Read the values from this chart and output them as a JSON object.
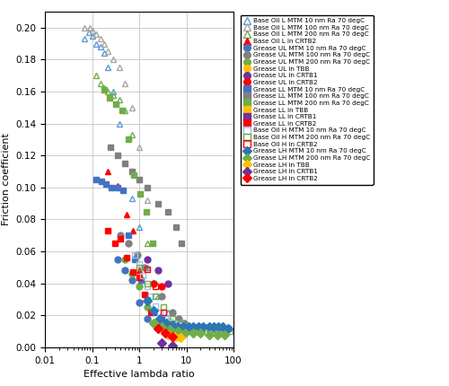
{
  "xlabel": "Effective lambda ratio",
  "ylabel": "Friction coefficient",
  "xlim": [
    0.01,
    100
  ],
  "ylim": [
    0,
    0.21
  ],
  "yticks": [
    0,
    0.02,
    0.04,
    0.06,
    0.08,
    0.1,
    0.12,
    0.14,
    0.16,
    0.18,
    0.2
  ],
  "figsize": [
    5.0,
    4.3
  ],
  "dpi": 100,
  "series": [
    {
      "label": "Base Oil L MTM 10 nm Ra 70 degC",
      "color": "#5B9BD5",
      "marker": "^",
      "filled": false,
      "x": [
        0.07,
        0.085,
        0.1,
        0.12,
        0.15,
        0.18,
        0.22,
        0.28,
        0.38,
        0.5,
        0.7,
        1.0,
        1.5,
        2.5,
        4.0
      ],
      "y": [
        0.193,
        0.197,
        0.195,
        0.19,
        0.188,
        0.184,
        0.175,
        0.16,
        0.14,
        0.115,
        0.093,
        0.075,
        0.05,
        0.032,
        0.022
      ]
    },
    {
      "label": "Base Oil L MTM 100 nm Ra 70 degC",
      "color": "#A6A6A6",
      "marker": "^",
      "filled": false,
      "x": [
        0.07,
        0.09,
        0.1,
        0.12,
        0.15,
        0.18,
        0.22,
        0.28,
        0.38,
        0.5,
        0.7,
        1.0,
        1.5,
        2.5
      ],
      "y": [
        0.2,
        0.2,
        0.198,
        0.196,
        0.193,
        0.19,
        0.185,
        0.18,
        0.175,
        0.165,
        0.15,
        0.125,
        0.092,
        0.018
      ]
    },
    {
      "label": "Base Oil L MTM 200 nm Ra 70 degC",
      "color": "#70AD47",
      "marker": "^",
      "filled": false,
      "x": [
        0.12,
        0.15,
        0.18,
        0.22,
        0.28,
        0.38,
        0.5,
        0.7,
        1.0,
        1.5
      ],
      "y": [
        0.17,
        0.165,
        0.162,
        0.16,
        0.158,
        0.155,
        0.148,
        0.133,
        0.105,
        0.065
      ]
    },
    {
      "label": "Base Oil L in CRTB2",
      "color": "#FF0000",
      "marker": "^",
      "filled": true,
      "x": [
        0.22,
        0.35,
        0.55,
        0.75,
        1.0
      ],
      "y": [
        0.11,
        0.101,
        0.083,
        0.073,
        0.048
      ]
    },
    {
      "label": "Grease UL MTM 10 nm Ra 70 degC",
      "color": "#4472C4",
      "marker": "o",
      "filled": true,
      "x": [
        0.35,
        0.5,
        0.7,
        1.0,
        1.5,
        2.5,
        4.0,
        6.0
      ],
      "y": [
        0.055,
        0.048,
        0.042,
        0.028,
        0.018,
        0.012,
        0.01,
        0.008
      ]
    },
    {
      "label": "Grease UL MTM 100 nm Ra 70 degC",
      "color": "#808080",
      "marker": "o",
      "filled": true,
      "x": [
        0.4,
        0.6,
        0.9,
        1.3,
        2.0,
        3.0,
        5.0,
        7.0,
        9.0
      ],
      "y": [
        0.07,
        0.065,
        0.058,
        0.05,
        0.04,
        0.032,
        0.022,
        0.018,
        0.015
      ]
    },
    {
      "label": "Grease UL MTM 200 nm Ra 70 degC",
      "color": "#70AD47",
      "marker": "o",
      "filled": true,
      "x": [
        0.5,
        0.7,
        1.0,
        1.5,
        2.0
      ],
      "y": [
        0.055,
        0.046,
        0.038,
        0.025,
        0.015
      ]
    },
    {
      "label": "Grease UL in TBB",
      "color": "#FFC000",
      "marker": "o",
      "filled": true,
      "x": [
        3.0,
        4.5,
        6.0
      ],
      "y": [
        0.012,
        0.008,
        0.006
      ]
    },
    {
      "label": "Grease UL in CRTB1",
      "color": "#7030A0",
      "marker": "o",
      "filled": true,
      "x": [
        1.5,
        2.5,
        4.0
      ],
      "y": [
        0.055,
        0.048,
        0.04
      ]
    },
    {
      "label": "Grease UL in CRTB2",
      "color": "#FF0000",
      "marker": "o",
      "filled": true,
      "x": [
        2.0,
        3.0
      ],
      "y": [
        0.04,
        0.038
      ]
    },
    {
      "label": "Grease LL MTM 10 nm Ra 70 degC",
      "color": "#4472C4",
      "marker": "s",
      "filled": true,
      "x": [
        0.12,
        0.16,
        0.2,
        0.26,
        0.35,
        0.45,
        0.6,
        0.8,
        1.1,
        1.5
      ],
      "y": [
        0.105,
        0.104,
        0.102,
        0.1,
        0.1,
        0.098,
        0.07,
        0.055,
        0.042,
        0.03
      ]
    },
    {
      "label": "Grease LL MTM 100 nm Ra 70 degC",
      "color": "#808080",
      "marker": "s",
      "filled": true,
      "x": [
        0.25,
        0.35,
        0.5,
        0.7,
        1.0,
        1.5,
        2.5,
        4.0,
        6.0,
        8.0
      ],
      "y": [
        0.125,
        0.12,
        0.115,
        0.11,
        0.105,
        0.1,
        0.09,
        0.085,
        0.075,
        0.065
      ]
    },
    {
      "label": "Grease LL MTM 200 nm Ra 70 degC",
      "color": "#70AD47",
      "marker": "s",
      "filled": true,
      "x": [
        0.18,
        0.24,
        0.32,
        0.43,
        0.58,
        0.78,
        1.05,
        1.4,
        1.9
      ],
      "y": [
        0.161,
        0.156,
        0.152,
        0.148,
        0.13,
        0.108,
        0.096,
        0.085,
        0.065
      ]
    },
    {
      "label": "Grease LL in TBB",
      "color": "#FFC000",
      "marker": "s",
      "filled": true,
      "x": [
        2.5
      ],
      "y": [
        0.015
      ]
    },
    {
      "label": "Grease LL in CRTB1",
      "color": "#7030A0",
      "marker": "s",
      "filled": true,
      "x": [
        2.0,
        3.0
      ],
      "y": [
        0.022,
        0.018
      ]
    },
    {
      "label": "Grease LL in CRTB2",
      "color": "#FF0000",
      "marker": "s",
      "filled": true,
      "x": [
        0.22,
        0.3,
        0.4,
        0.55,
        0.75,
        1.0,
        1.3,
        1.8,
        2.5
      ],
      "y": [
        0.073,
        0.065,
        0.068,
        0.056,
        0.047,
        0.044,
        0.033,
        0.022,
        0.013
      ]
    },
    {
      "label": "Base Oil H MTM 10 nm Ra 70 degC",
      "color": "#9DC3E6",
      "marker": "s",
      "filled": false,
      "x": [
        0.8,
        1.0,
        1.2,
        1.5,
        1.8,
        2.2,
        2.8,
        3.5,
        4.5,
        5.5,
        7.0,
        9.0,
        11.0,
        14.0,
        17.0,
        21.0,
        26.0,
        32.0,
        40.0,
        50.0,
        63.0,
        80.0
      ],
      "y": [
        0.058,
        0.052,
        0.045,
        0.038,
        0.032,
        0.026,
        0.022,
        0.018,
        0.016,
        0.015,
        0.014,
        0.013,
        0.013,
        0.013,
        0.013,
        0.013,
        0.013,
        0.013,
        0.012,
        0.012,
        0.012,
        0.012
      ]
    },
    {
      "label": "Base Oil H MTM 200 nm Ra 70 degC",
      "color": "#70AD47",
      "marker": "s",
      "filled": false,
      "x": [
        1.0,
        1.5,
        2.2,
        3.2,
        5.0,
        7.5,
        11.0,
        17.0,
        25.0,
        40.0,
        60.0,
        85.0
      ],
      "y": [
        0.05,
        0.04,
        0.032,
        0.025,
        0.018,
        0.015,
        0.013,
        0.012,
        0.012,
        0.011,
        0.011,
        0.01
      ]
    },
    {
      "label": "Base Oil H in CRTB2",
      "color": "#FF0000",
      "marker": "s",
      "filled": false,
      "x": [
        1.5,
        2.2,
        3.2,
        4.5
      ],
      "y": [
        0.049,
        0.038,
        0.022,
        0.012
      ]
    },
    {
      "label": "Grease LH MTM 10 nm Ra 70 degC",
      "color": "#2E75B6",
      "marker": "D",
      "filled": true,
      "x": [
        1.5,
        2.0,
        2.8,
        3.8,
        5.0,
        6.5,
        8.5,
        11.0,
        14.0,
        18.0,
        23.0,
        30.0,
        38.0,
        48.0,
        60.0,
        76.0
      ],
      "y": [
        0.029,
        0.023,
        0.018,
        0.015,
        0.014,
        0.013,
        0.013,
        0.013,
        0.013,
        0.013,
        0.013,
        0.013,
        0.013,
        0.013,
        0.013,
        0.012
      ]
    },
    {
      "label": "Grease LH MTM 200 nm Ra 70 degC",
      "color": "#70AD47",
      "marker": "D",
      "filled": true,
      "x": [
        2.0,
        3.0,
        4.5,
        6.5,
        9.5,
        14.0,
        20.0,
        30.0,
        45.0,
        65.0
      ],
      "y": [
        0.015,
        0.013,
        0.011,
        0.01,
        0.009,
        0.009,
        0.009,
        0.008,
        0.008,
        0.008
      ]
    },
    {
      "label": "Grease LH in TBB",
      "color": "#FFC000",
      "marker": "D",
      "filled": true,
      "x": [
        4.0,
        5.5,
        7.5
      ],
      "y": [
        0.008,
        0.007,
        0.006
      ]
    },
    {
      "label": "Grease LH in CRTB1",
      "color": "#7030A0",
      "marker": "D",
      "filled": true,
      "x": [
        3.0,
        5.0
      ],
      "y": [
        0.003,
        0.001
      ]
    },
    {
      "label": "Grease LH in CRTB2",
      "color": "#FF0000",
      "marker": "D",
      "filled": true,
      "x": [
        2.5,
        3.5,
        5.0
      ],
      "y": [
        0.012,
        0.009,
        0.007
      ]
    }
  ]
}
